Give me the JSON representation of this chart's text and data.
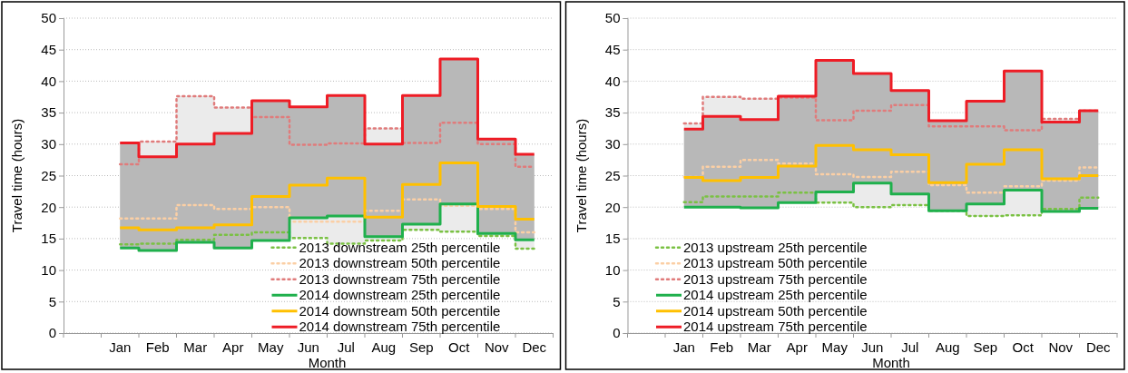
{
  "chart_data": [
    {
      "type": "step",
      "xlabel": "Month",
      "ylabel": "Travel time (hours)",
      "categories": [
        null,
        "Jan",
        "Feb",
        "Mar",
        "Apr",
        "May",
        "Jun",
        "Jul",
        "Aug",
        "Sep",
        "Oct",
        "Nov",
        "Dec"
      ],
      "ylim": [
        0,
        50
      ],
      "yticks": [
        0,
        5,
        10,
        15,
        20,
        25,
        30,
        35,
        40,
        45,
        50
      ],
      "grid": "y",
      "legend": "bottom right",
      "series": [
        {
          "name": "2013 downstream 25th percentile",
          "color": "#7ac143",
          "line_style": "dotted",
          "values": [
            null,
            14.1,
            14.2,
            14.8,
            15.6,
            16.0,
            15.1,
            14.2,
            14.7,
            16.4,
            16.1,
            15.4,
            13.4
          ]
        },
        {
          "name": "2013 downstream 50th percentile",
          "color": "#fbcfa5",
          "line_style": "dotted",
          "values": [
            null,
            18.2,
            18.2,
            20.3,
            19.7,
            20.0,
            17.7,
            17.7,
            19.4,
            21.2,
            20.2,
            19.7,
            16.0
          ],
          "lower": [
            null,
            14.1,
            14.2,
            14.8,
            15.6,
            16.0,
            15.1,
            14.2,
            14.7,
            16.4,
            16.1,
            15.4,
            13.4
          ],
          "upper": [
            null,
            26.8,
            30.4,
            37.6,
            35.8,
            34.3,
            29.9,
            30.1,
            32.5,
            30.2,
            33.4,
            30.0,
            26.4
          ]
        },
        {
          "name": "2013 downstream 75th percentile",
          "color": "#e07b7b",
          "line_style": "dotted",
          "values": [
            null,
            26.8,
            30.4,
            37.6,
            35.8,
            34.3,
            29.9,
            30.1,
            32.5,
            30.2,
            33.4,
            30.0,
            26.4
          ]
        },
        {
          "name": "2014 downstream 25th percentile",
          "color": "#1fb04c",
          "line_style": "solid",
          "values": [
            null,
            13.5,
            13.1,
            14.4,
            13.5,
            14.7,
            18.3,
            18.6,
            15.3,
            17.3,
            20.5,
            15.8,
            14.8
          ]
        },
        {
          "name": "2014 downstream 50th percentile",
          "color": "#ffc000",
          "line_style": "solid",
          "values": [
            null,
            16.7,
            16.4,
            16.7,
            17.2,
            21.7,
            23.5,
            24.6,
            18.4,
            23.6,
            27.0,
            20.1,
            18.1
          ],
          "lower": [
            null,
            13.5,
            13.1,
            14.4,
            13.5,
            14.7,
            18.3,
            18.6,
            15.3,
            17.3,
            20.5,
            15.8,
            14.8
          ],
          "upper": [
            null,
            30.2,
            28.0,
            30.0,
            31.7,
            36.9,
            35.9,
            37.7,
            30.0,
            37.7,
            43.5,
            30.8,
            28.4
          ]
        },
        {
          "name": "2014 downstream 75th percentile",
          "color": "#ee1c25",
          "line_style": "solid",
          "values": [
            null,
            30.2,
            28.0,
            30.0,
            31.7,
            36.9,
            35.9,
            37.7,
            30.0,
            37.7,
            43.5,
            30.8,
            28.4
          ]
        }
      ]
    },
    {
      "type": "step",
      "xlabel": "Month",
      "ylabel": "Travel time (hours)",
      "categories": [
        null,
        "Jan",
        "Feb",
        "Mar",
        "Apr",
        "May",
        "Jun",
        "Jul",
        "Aug",
        "Sep",
        "Oct",
        "Nov",
        "Dec"
      ],
      "ylim": [
        0,
        50
      ],
      "yticks": [
        0,
        5,
        10,
        15,
        20,
        25,
        30,
        35,
        40,
        45,
        50
      ],
      "grid": "y",
      "legend": "bottom left",
      "series": [
        {
          "name": "2013 upstream 25th percentile",
          "color": "#7ac143",
          "line_style": "dotted",
          "values": [
            null,
            20.8,
            21.7,
            21.7,
            22.3,
            20.7,
            20.0,
            20.3,
            19.4,
            18.6,
            18.7,
            19.7,
            21.5
          ]
        },
        {
          "name": "2013 upstream 50th percentile",
          "color": "#fbcfa5",
          "line_style": "dotted",
          "values": [
            null,
            24.8,
            26.4,
            27.5,
            26.9,
            25.2,
            24.8,
            25.6,
            23.5,
            22.3,
            23.3,
            24.2,
            26.3
          ],
          "lower": [
            null,
            20.8,
            21.7,
            21.7,
            22.3,
            20.7,
            20.0,
            20.3,
            19.4,
            18.6,
            18.7,
            19.7,
            21.5
          ],
          "upper": [
            null,
            33.3,
            37.5,
            37.2,
            37.4,
            33.8,
            35.3,
            36.2,
            32.8,
            32.8,
            32.2,
            34.0,
            35.3
          ]
        },
        {
          "name": "2013 upstream 75th percentile",
          "color": "#e07b7b",
          "line_style": "dotted",
          "values": [
            null,
            33.3,
            37.5,
            37.2,
            37.4,
            33.8,
            35.3,
            36.2,
            32.8,
            32.8,
            32.2,
            34.0,
            35.3
          ]
        },
        {
          "name": "2014 upstream 25th percentile",
          "color": "#1fb04c",
          "line_style": "solid",
          "values": [
            null,
            20.0,
            20.0,
            19.9,
            20.7,
            22.4,
            23.8,
            22.1,
            19.4,
            20.5,
            22.7,
            19.3,
            19.8
          ]
        },
        {
          "name": "2014 upstream 50th percentile",
          "color": "#ffc000",
          "line_style": "solid",
          "values": [
            null,
            24.7,
            24.2,
            24.7,
            26.5,
            29.8,
            29.1,
            28.3,
            23.9,
            26.8,
            29.1,
            24.5,
            25.0
          ],
          "lower": [
            null,
            20.0,
            20.0,
            19.9,
            20.7,
            22.4,
            23.8,
            22.1,
            19.4,
            20.5,
            22.7,
            19.3,
            19.8
          ],
          "upper": [
            null,
            32.4,
            34.4,
            33.9,
            37.6,
            43.3,
            41.2,
            38.5,
            33.7,
            36.8,
            41.6,
            33.5,
            35.3
          ]
        },
        {
          "name": "2014 upstream 75th percentile",
          "color": "#ee1c25",
          "line_style": "solid",
          "values": [
            null,
            32.4,
            34.4,
            33.9,
            37.6,
            43.3,
            41.2,
            38.5,
            33.7,
            36.8,
            41.6,
            33.5,
            35.3
          ]
        }
      ]
    }
  ]
}
